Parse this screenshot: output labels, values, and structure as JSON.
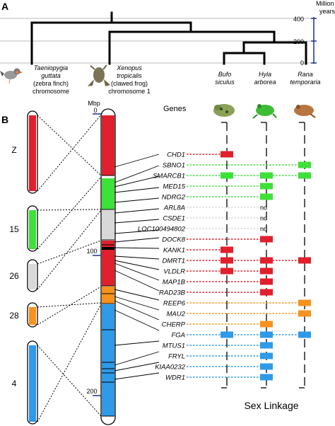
{
  "panels": {
    "a": "A",
    "b": "B"
  },
  "time_axis": {
    "title_line1": "Million",
    "title_line2": "years",
    "ticks": [
      "400",
      "200",
      "0"
    ],
    "color": "#1f2f8f"
  },
  "species": [
    {
      "key": "finch",
      "lines": [
        "Taeniopygia",
        "guttata"
      ],
      "common": [
        "(zebra finch)",
        "chromosome"
      ],
      "icon": "zebra-finch-image"
    },
    {
      "key": "xenopus",
      "lines": [
        "Xenopus",
        "tropicalis"
      ],
      "common": [
        "(clawed frog)",
        "chromosome 1"
      ],
      "icon": "clawed-frog-image"
    },
    {
      "key": "bufo",
      "lines": [
        "Bufo",
        "siculus"
      ],
      "common": [],
      "icon": "toad-image"
    },
    {
      "key": "hyla",
      "lines": [
        "Hyla",
        "arborea"
      ],
      "common": [],
      "icon": "tree-frog-image"
    },
    {
      "key": "rana",
      "lines": [
        "Rana",
        "temporaria"
      ],
      "common": [],
      "icon": "common-frog-image"
    }
  ],
  "finch_chromosomes": [
    {
      "label": "Z",
      "color": "#e0202c"
    },
    {
      "label": "15",
      "color": "#3ee03a"
    },
    {
      "label": "26",
      "color": "#d8d8d8"
    },
    {
      "label": "28",
      "color": "#f7921e"
    },
    {
      "label": "4",
      "color": "#2e9ae8"
    }
  ],
  "xenopus_axis": {
    "unit": "Mbp",
    "ticks": [
      "0",
      "100",
      "200"
    ]
  },
  "genes_header": "Genes",
  "sex_linkage_label": "Sex Linkage",
  "colors": {
    "red": "#e0202c",
    "green": "#3ee03a",
    "gray": "#d8d8d8",
    "orange": "#f7921e",
    "blue": "#2e9ae8",
    "dmrt1_text": "#d0202c"
  },
  "genes": [
    {
      "name": "CHD1",
      "color": "red",
      "bufo": "box",
      "hyla": "",
      "rana": ""
    },
    {
      "name": "SBNO1",
      "color": "green",
      "bufo": "",
      "hyla": "",
      "rana": "box"
    },
    {
      "name": "SMARCB1",
      "color": "green",
      "bufo": "box",
      "hyla": "box",
      "rana": "box"
    },
    {
      "name": "MED15",
      "color": "green",
      "bufo": "",
      "hyla": "box",
      "rana": ""
    },
    {
      "name": "NDRG2",
      "color": "green",
      "bufo": "",
      "hyla": "box",
      "rana": ""
    },
    {
      "name": "ARL8A",
      "color": "gray",
      "bufo": "",
      "hyla": "no",
      "rana": ""
    },
    {
      "name": "CSDE1",
      "color": "gray",
      "bufo": "",
      "hyla": "no",
      "rana": ""
    },
    {
      "name": "LOC100494802",
      "color": "gray",
      "bufo": "",
      "hyla": "no",
      "rana": ""
    },
    {
      "name": "DOCK8",
      "color": "red",
      "bufo": "",
      "hyla": "box",
      "rana": ""
    },
    {
      "name": "KANK1",
      "color": "red",
      "bufo": "box",
      "hyla": "",
      "rana": ""
    },
    {
      "name": "DMRT1",
      "color": "red",
      "bufo": "box",
      "hyla": "box",
      "rana": "box"
    },
    {
      "name": "VLDLR",
      "color": "red",
      "bufo": "box",
      "hyla": "box",
      "rana": ""
    },
    {
      "name": "MAP1B",
      "color": "red",
      "bufo": "",
      "hyla": "box",
      "rana": ""
    },
    {
      "name": "RAD23B",
      "color": "red",
      "bufo": "",
      "hyla": "box",
      "rana": ""
    },
    {
      "name": "REEP6",
      "color": "orange",
      "bufo": "",
      "hyla": "",
      "rana": "box"
    },
    {
      "name": "MAU2",
      "color": "orange",
      "bufo": "",
      "hyla": "",
      "rana": "box"
    },
    {
      "name": "CHERP",
      "color": "orange",
      "bufo": "",
      "hyla": "box",
      "rana": ""
    },
    {
      "name": "FGA",
      "color": "blue",
      "bufo": "box",
      "hyla": "box",
      "rana": "box"
    },
    {
      "name": "MTUS1",
      "color": "blue",
      "bufo": "",
      "hyla": "box",
      "rana": ""
    },
    {
      "name": "FRYL",
      "color": "blue",
      "bufo": "",
      "hyla": "box",
      "rana": ""
    },
    {
      "name": "KIAA0232",
      "color": "blue",
      "bufo": "",
      "hyla": "box",
      "rana": ""
    },
    {
      "name": "WDR1",
      "color": "blue",
      "bufo": "",
      "hyla": "box",
      "rana": ""
    }
  ]
}
